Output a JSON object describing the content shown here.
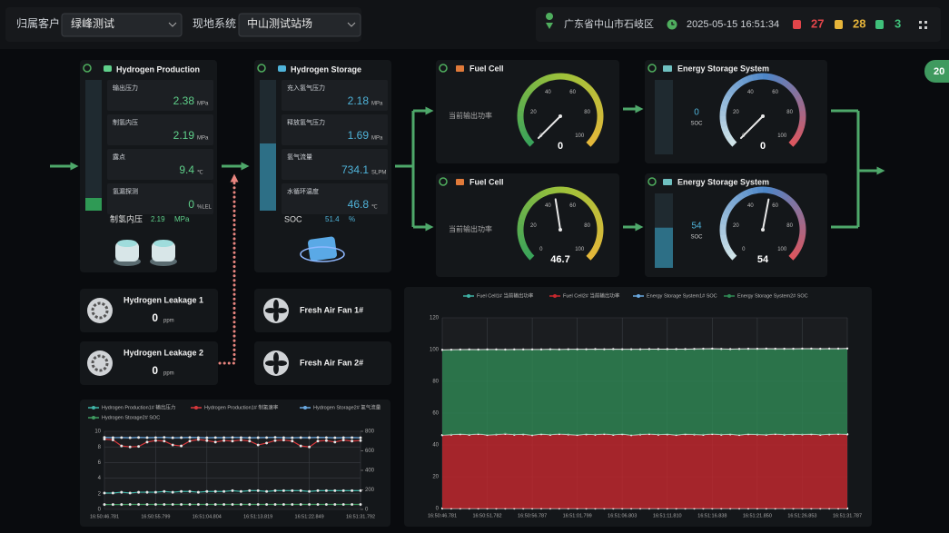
{
  "header": {
    "customer_label": "归属客户",
    "customer": "绿峰测试",
    "system_label": "现地系统",
    "system": "中山测试站场",
    "location": "广东省中山市石岐区",
    "datetime": "2025-05-15 16:51:34",
    "alarms": [
      27,
      28,
      3
    ],
    "badge": "20"
  },
  "production": {
    "title": "Hydrogen Production",
    "items": [
      {
        "label": "输出压力",
        "value": 2.38,
        "unit": "MPa"
      },
      {
        "label": "制氢内压",
        "value": 2.19,
        "unit": "MPa"
      },
      {
        "label": "露点",
        "value": 9.4,
        "unit": "℃"
      },
      {
        "label": "氢漏探测",
        "value": 0,
        "unit": "%LEL"
      }
    ],
    "footer": {
      "label": "制氢内压",
      "value": 2.19,
      "unit": "MPa"
    }
  },
  "storage": {
    "title": "Hydrogen Storage",
    "items": [
      {
        "label": "充入氢气压力",
        "value": 2.18,
        "unit": "MPa"
      },
      {
        "label": "释放氢气压力",
        "value": 1.69,
        "unit": "MPa"
      },
      {
        "label": "氢气流量",
        "value": 734.1,
        "unit": "SLPM"
      },
      {
        "label": "水循环温度",
        "value": 46.8,
        "unit": "℃"
      }
    ],
    "footer": {
      "label": "SOC",
      "value": 51.4,
      "unit": "%"
    }
  },
  "fuel_cells": [
    {
      "title": "Fuel Cell",
      "label": "当前输出功率",
      "value": 0
    },
    {
      "title": "Fuel Cell",
      "label": "当前输出功率",
      "value": 46.7
    }
  ],
  "ess": [
    {
      "title": "Energy Storage System",
      "soc": 0,
      "soc_label": "SOC",
      "value": 0
    },
    {
      "title": "Energy Storage System",
      "soc": 54,
      "soc_label": "SOC",
      "value": 54
    }
  ],
  "gauge": {
    "ticks": [
      0,
      20,
      40,
      60,
      80,
      100
    ]
  },
  "sensors": [
    {
      "title": "Hydrogen Leakage 1",
      "value": 0,
      "unit": "ppm"
    },
    {
      "title": "Hydrogen Leakage 2",
      "value": 0,
      "unit": "ppm"
    }
  ],
  "fans": [
    {
      "title": "Fresh Air Fan 1#"
    },
    {
      "title": "Fresh Air Fan 2#"
    }
  ],
  "chart_data": [
    {
      "type": "line",
      "categories": [
        "16:50:46.781",
        null,
        null,
        null,
        null,
        null,
        "16:50:55.799",
        null,
        null,
        null,
        null,
        null,
        "16:51:04.804",
        null,
        null,
        null,
        null,
        null,
        "16:51:13.819",
        null,
        null,
        null,
        null,
        null,
        "16:51:22.849",
        null,
        null,
        null,
        null,
        null,
        "16:51:31.792"
      ],
      "ylim": [
        0,
        10
      ],
      "yticks": [
        0,
        2,
        4,
        6,
        8,
        10
      ],
      "y2lim": [
        0,
        800
      ],
      "y2ticks": [
        0,
        200,
        400,
        600,
        800
      ],
      "grid": true,
      "series": [
        {
          "name": "Hydrogen Production1# 输出压力",
          "color": "#3fb3a6",
          "values": [
            2.1,
            2.1,
            2.2,
            2.1,
            2.2,
            2.2,
            2.2,
            2.3,
            2.2,
            2.3,
            2.3,
            2.2,
            2.3,
            2.3,
            2.3,
            2.4,
            2.3,
            2.4,
            2.4,
            2.3,
            2.4,
            2.4,
            2.4,
            2.4,
            2.3,
            2.4,
            2.4,
            2.4,
            2.4,
            2.4,
            2.4
          ]
        },
        {
          "name": "Hydrogen Production1# 制氢速率",
          "color": "#d8383c",
          "axis": "y2",
          "values": [
            720,
            712,
            650,
            640,
            645,
            690,
            705,
            700,
            660,
            650,
            700,
            715,
            705,
            690,
            705,
            700,
            710,
            700,
            660,
            680,
            705,
            710,
            700,
            650,
            640,
            700,
            705,
            690,
            710,
            700,
            705
          ]
        },
        {
          "name": "Hydrogen Storage2# 氢气流量",
          "color": "#6aa8e0",
          "axis": "y2",
          "values": [
            738,
            735,
            736,
            734,
            737,
            735,
            736,
            738,
            734,
            735,
            737,
            736,
            734,
            736,
            735,
            737,
            736,
            734,
            735,
            736,
            738,
            735,
            734,
            736,
            735,
            737,
            736,
            734,
            735,
            736,
            734
          ]
        },
        {
          "name": "Hydrogen Storage2# SOC",
          "color": "#3f9a5f",
          "axis": "y2",
          "values": [
            50,
            50,
            50,
            51,
            51,
            51,
            51,
            51,
            51,
            51,
            51,
            51,
            51,
            51,
            51,
            51,
            51,
            51,
            51,
            51,
            51,
            51,
            51,
            51,
            51,
            51,
            51,
            51,
            51,
            51,
            51
          ]
        }
      ]
    },
    {
      "type": "area",
      "stacked": true,
      "categories": [
        "16:50:46.781",
        null,
        null,
        null,
        null,
        "16:50:51.782",
        null,
        null,
        null,
        null,
        "16:50:56.787",
        null,
        null,
        null,
        null,
        "16:51:01.799",
        null,
        null,
        null,
        null,
        "16:51:06.803",
        null,
        null,
        null,
        null,
        "16:51:11.810",
        null,
        null,
        null,
        null,
        "16:51:16.838",
        null,
        null,
        null,
        null,
        "16:51:21.850",
        null,
        null,
        null,
        null,
        "16:51:26.853",
        null,
        null,
        null,
        null,
        "16:51:31.787"
      ],
      "ylim": [
        0,
        120
      ],
      "yticks": [
        0,
        20,
        40,
        60,
        80,
        100,
        120
      ],
      "grid": true,
      "series": [
        {
          "name": "Fuel Cell1# 当前输出功率",
          "color": "#3fb3a6",
          "values": [
            0,
            0,
            0,
            0,
            0,
            0,
            0,
            0,
            0,
            0,
            0,
            0,
            0,
            0,
            0,
            0,
            0,
            0,
            0,
            0,
            0,
            0,
            0,
            0,
            0,
            0,
            0,
            0,
            0,
            0,
            0,
            0,
            0,
            0,
            0,
            0,
            0,
            0,
            0,
            0,
            0,
            0,
            0,
            0,
            0,
            0
          ]
        },
        {
          "name": "Fuel Cell2# 当前输出功率",
          "color": "#c8282e",
          "values": [
            46.2,
            46.5,
            46.8,
            46.4,
            46.9,
            46.3,
            46.6,
            47.0,
            46.5,
            46.7,
            46.2,
            46.8,
            46.4,
            46.9,
            46.6,
            46.3,
            46.7,
            46.5,
            46.9,
            46.4,
            46.8,
            46.2,
            46.6,
            46.9,
            46.5,
            46.7,
            46.3,
            46.8,
            46.6,
            46.4,
            46.9,
            46.5,
            46.7,
            46.3,
            46.8,
            46.6,
            46.4,
            46.9,
            46.5,
            46.7,
            46.6,
            46.8,
            46.4,
            46.7,
            46.9,
            46.7
          ]
        },
        {
          "name": "Energy Storage System1# SOC",
          "color": "#6aa8e0",
          "values": [
            0,
            0,
            0,
            0,
            0,
            0,
            0,
            0,
            0,
            0,
            0,
            0,
            0,
            0,
            0,
            0,
            0,
            0,
            0,
            0,
            0,
            0,
            0,
            0,
            0,
            0,
            0,
            0,
            0,
            0,
            0,
            0,
            0,
            0,
            0,
            0,
            0,
            0,
            0,
            0,
            0,
            0,
            0,
            0,
            0,
            0
          ]
        },
        {
          "name": "Energy Storage System2# SOC",
          "color": "#2f8a55",
          "values": [
            53.6,
            53.4,
            53.2,
            53.7,
            53.1,
            53.8,
            53.5,
            53.0,
            53.6,
            53.4,
            53.9,
            53.3,
            53.8,
            53.2,
            53.6,
            53.9,
            53.5,
            53.8,
            53.3,
            53.9,
            53.4,
            54.0,
            53.6,
            53.4,
            53.8,
            53.6,
            54.0,
            53.5,
            53.8,
            54.1,
            53.7,
            53.9,
            53.6,
            54.1,
            53.7,
            53.9,
            54.2,
            53.6,
            54.0,
            53.8,
            54.0,
            53.8,
            54.1,
            53.9,
            53.7,
            54.0
          ]
        }
      ]
    }
  ]
}
